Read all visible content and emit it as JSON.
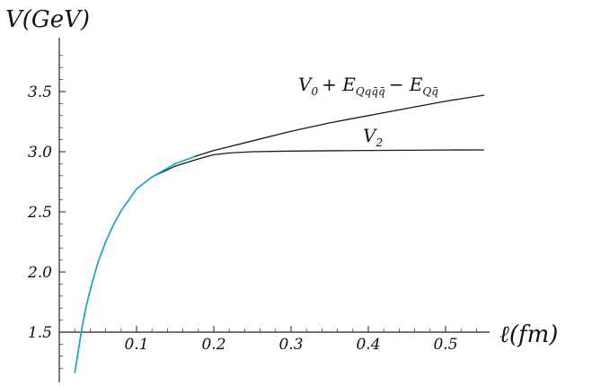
{
  "chart_data": {
    "type": "line",
    "title": "",
    "xlabel": "ℓ(fm)",
    "ylabel": "V(GeV)",
    "xlim": [
      0.0,
      0.55
    ],
    "ylim": [
      1.3,
      3.85
    ],
    "x_ticks": [
      0.1,
      0.2,
      0.3,
      0.4,
      0.5
    ],
    "x_tick_labels": [
      "0.1",
      "0.2",
      "0.3",
      "0.4",
      "0.5"
    ],
    "y_ticks": [
      1.5,
      2.0,
      2.5,
      3.0,
      3.5
    ],
    "y_tick_labels": [
      "1.5",
      "2.0",
      "2.5",
      "3.0",
      "3.5"
    ],
    "axes_origin": {
      "x": 0.0,
      "y": 1.5
    },
    "grid": false,
    "series": [
      {
        "id": "upper",
        "label_main": "V",
        "label_sub": "0",
        "label_rest": "+ E",
        "label_sub2": "Qqq̄q̄",
        "label_rest2": "− E",
        "label_sub3": "Qq̄",
        "color": "#1a1a1a",
        "x": [
          0.02,
          0.025,
          0.03,
          0.035,
          0.04,
          0.05,
          0.06,
          0.07,
          0.08,
          0.1,
          0.12,
          0.15,
          0.18,
          0.2,
          0.25,
          0.3,
          0.35,
          0.4,
          0.45,
          0.5,
          0.55
        ],
        "y": [
          1.16,
          1.36,
          1.56,
          1.72,
          1.85,
          2.08,
          2.25,
          2.39,
          2.51,
          2.69,
          2.79,
          2.9,
          2.97,
          3.01,
          3.09,
          3.17,
          3.24,
          3.3,
          3.36,
          3.42,
          3.47
        ]
      },
      {
        "id": "v2",
        "label_main": "V",
        "label_sub": "2",
        "color": "#1a1a1a",
        "x": [
          0.02,
          0.025,
          0.03,
          0.035,
          0.04,
          0.05,
          0.06,
          0.07,
          0.08,
          0.1,
          0.12,
          0.15,
          0.18,
          0.2,
          0.22,
          0.25,
          0.3,
          0.35,
          0.4,
          0.45,
          0.5,
          0.55
        ],
        "y": [
          1.16,
          1.36,
          1.56,
          1.72,
          1.85,
          2.08,
          2.25,
          2.39,
          2.51,
          2.69,
          2.79,
          2.88,
          2.94,
          2.975,
          2.99,
          3.0,
          3.005,
          3.008,
          3.01,
          3.012,
          3.014,
          3.015
        ]
      },
      {
        "id": "cyan",
        "color": "#18a9d4",
        "x": [
          0.02,
          0.025,
          0.03,
          0.035,
          0.04,
          0.05,
          0.06,
          0.07,
          0.08,
          0.1,
          0.12,
          0.15,
          0.175
        ],
        "y": [
          1.16,
          1.36,
          1.56,
          1.72,
          1.85,
          2.08,
          2.25,
          2.39,
          2.51,
          2.69,
          2.79,
          2.9,
          2.96
        ]
      }
    ]
  }
}
